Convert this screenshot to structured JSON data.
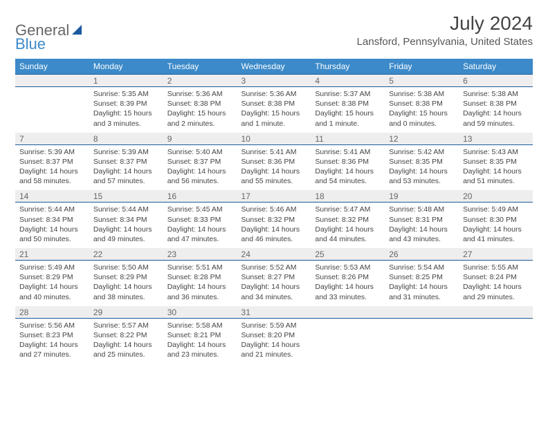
{
  "logo": {
    "part1": "General",
    "part2": "Blue"
  },
  "title": "July 2024",
  "location": "Lansford, Pennsylvania, United States",
  "colors": {
    "header_bg": "#3c8ac9",
    "header_border": "#1a5a9e",
    "daynum_bg": "#eeeeee",
    "text": "#444444"
  },
  "weekdays": [
    "Sunday",
    "Monday",
    "Tuesday",
    "Wednesday",
    "Thursday",
    "Friday",
    "Saturday"
  ],
  "weeks": [
    [
      {
        "n": "",
        "body": ""
      },
      {
        "n": "1",
        "body": "Sunrise: 5:35 AM\nSunset: 8:39 PM\nDaylight: 15 hours and 3 minutes."
      },
      {
        "n": "2",
        "body": "Sunrise: 5:36 AM\nSunset: 8:38 PM\nDaylight: 15 hours and 2 minutes."
      },
      {
        "n": "3",
        "body": "Sunrise: 5:36 AM\nSunset: 8:38 PM\nDaylight: 15 hours and 1 minute."
      },
      {
        "n": "4",
        "body": "Sunrise: 5:37 AM\nSunset: 8:38 PM\nDaylight: 15 hours and 1 minute."
      },
      {
        "n": "5",
        "body": "Sunrise: 5:38 AM\nSunset: 8:38 PM\nDaylight: 15 hours and 0 minutes."
      },
      {
        "n": "6",
        "body": "Sunrise: 5:38 AM\nSunset: 8:38 PM\nDaylight: 14 hours and 59 minutes."
      }
    ],
    [
      {
        "n": "7",
        "body": "Sunrise: 5:39 AM\nSunset: 8:37 PM\nDaylight: 14 hours and 58 minutes."
      },
      {
        "n": "8",
        "body": "Sunrise: 5:39 AM\nSunset: 8:37 PM\nDaylight: 14 hours and 57 minutes."
      },
      {
        "n": "9",
        "body": "Sunrise: 5:40 AM\nSunset: 8:37 PM\nDaylight: 14 hours and 56 minutes."
      },
      {
        "n": "10",
        "body": "Sunrise: 5:41 AM\nSunset: 8:36 PM\nDaylight: 14 hours and 55 minutes."
      },
      {
        "n": "11",
        "body": "Sunrise: 5:41 AM\nSunset: 8:36 PM\nDaylight: 14 hours and 54 minutes."
      },
      {
        "n": "12",
        "body": "Sunrise: 5:42 AM\nSunset: 8:35 PM\nDaylight: 14 hours and 53 minutes."
      },
      {
        "n": "13",
        "body": "Sunrise: 5:43 AM\nSunset: 8:35 PM\nDaylight: 14 hours and 51 minutes."
      }
    ],
    [
      {
        "n": "14",
        "body": "Sunrise: 5:44 AM\nSunset: 8:34 PM\nDaylight: 14 hours and 50 minutes."
      },
      {
        "n": "15",
        "body": "Sunrise: 5:44 AM\nSunset: 8:34 PM\nDaylight: 14 hours and 49 minutes."
      },
      {
        "n": "16",
        "body": "Sunrise: 5:45 AM\nSunset: 8:33 PM\nDaylight: 14 hours and 47 minutes."
      },
      {
        "n": "17",
        "body": "Sunrise: 5:46 AM\nSunset: 8:32 PM\nDaylight: 14 hours and 46 minutes."
      },
      {
        "n": "18",
        "body": "Sunrise: 5:47 AM\nSunset: 8:32 PM\nDaylight: 14 hours and 44 minutes."
      },
      {
        "n": "19",
        "body": "Sunrise: 5:48 AM\nSunset: 8:31 PM\nDaylight: 14 hours and 43 minutes."
      },
      {
        "n": "20",
        "body": "Sunrise: 5:49 AM\nSunset: 8:30 PM\nDaylight: 14 hours and 41 minutes."
      }
    ],
    [
      {
        "n": "21",
        "body": "Sunrise: 5:49 AM\nSunset: 8:29 PM\nDaylight: 14 hours and 40 minutes."
      },
      {
        "n": "22",
        "body": "Sunrise: 5:50 AM\nSunset: 8:29 PM\nDaylight: 14 hours and 38 minutes."
      },
      {
        "n": "23",
        "body": "Sunrise: 5:51 AM\nSunset: 8:28 PM\nDaylight: 14 hours and 36 minutes."
      },
      {
        "n": "24",
        "body": "Sunrise: 5:52 AM\nSunset: 8:27 PM\nDaylight: 14 hours and 34 minutes."
      },
      {
        "n": "25",
        "body": "Sunrise: 5:53 AM\nSunset: 8:26 PM\nDaylight: 14 hours and 33 minutes."
      },
      {
        "n": "26",
        "body": "Sunrise: 5:54 AM\nSunset: 8:25 PM\nDaylight: 14 hours and 31 minutes."
      },
      {
        "n": "27",
        "body": "Sunrise: 5:55 AM\nSunset: 8:24 PM\nDaylight: 14 hours and 29 minutes."
      }
    ],
    [
      {
        "n": "28",
        "body": "Sunrise: 5:56 AM\nSunset: 8:23 PM\nDaylight: 14 hours and 27 minutes."
      },
      {
        "n": "29",
        "body": "Sunrise: 5:57 AM\nSunset: 8:22 PM\nDaylight: 14 hours and 25 minutes."
      },
      {
        "n": "30",
        "body": "Sunrise: 5:58 AM\nSunset: 8:21 PM\nDaylight: 14 hours and 23 minutes."
      },
      {
        "n": "31",
        "body": "Sunrise: 5:59 AM\nSunset: 8:20 PM\nDaylight: 14 hours and 21 minutes."
      },
      {
        "n": "",
        "body": ""
      },
      {
        "n": "",
        "body": ""
      },
      {
        "n": "",
        "body": ""
      }
    ]
  ]
}
